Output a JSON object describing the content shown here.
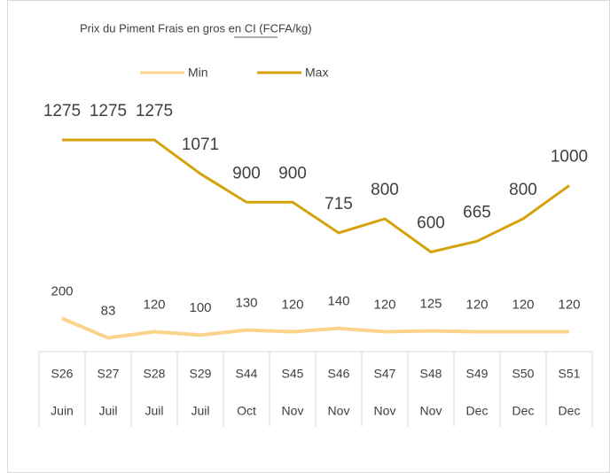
{
  "chart_data": {
    "type": "line",
    "title": "Prix du Piment Frais en gros en CI (FCFA/kg)",
    "categories": [
      "S26",
      "S27",
      "S28",
      "S29",
      "S44",
      "S45",
      "S46",
      "S47",
      "S48",
      "S49",
      "S50",
      "S51"
    ],
    "months": [
      "Juin",
      "Juil",
      "Juil",
      "Juil",
      "Oct",
      "Nov",
      "Nov",
      "Nov",
      "Nov",
      "Dec",
      "Dec",
      "Dec"
    ],
    "series": [
      {
        "name": "Min",
        "color": "#fbd38b",
        "values": [
          200,
          83,
          120,
          100,
          130,
          120,
          140,
          120,
          125,
          120,
          120,
          120
        ]
      },
      {
        "name": "Max",
        "color": "#d4a20c",
        "values": [
          1275,
          1275,
          1275,
          1071,
          900,
          900,
          715,
          800,
          600,
          665,
          800,
          1000
        ]
      }
    ],
    "legend": "top"
  }
}
